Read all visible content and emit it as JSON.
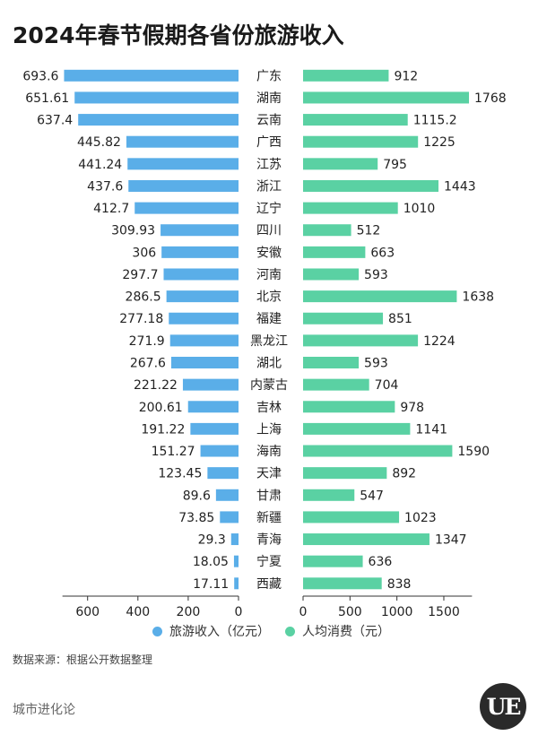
{
  "title": "2024年春节假期各省份旅游收入",
  "chart_data": {
    "type": "bar",
    "categories": [
      "广东",
      "湖南",
      "云南",
      "广西",
      "江苏",
      "浙江",
      "辽宁",
      "四川",
      "安徽",
      "河南",
      "北京",
      "福建",
      "黑龙江",
      "湖北",
      "内蒙古",
      "吉林",
      "上海",
      "海南",
      "天津",
      "甘肃",
      "新疆",
      "青海",
      "宁夏",
      "西藏"
    ],
    "series": [
      {
        "name": "旅游收入（亿元）",
        "color": "#5aaee8",
        "values": [
          693.6,
          651.61,
          637.4,
          445.82,
          441.24,
          437.6,
          412.7,
          309.93,
          306,
          297.7,
          286.5,
          277.18,
          271.9,
          267.6,
          221.22,
          200.61,
          191.22,
          151.27,
          123.45,
          89.6,
          73.85,
          29.3,
          18.05,
          17.11
        ],
        "labels": [
          "693.6",
          "651.61",
          "637.4",
          "445.82",
          "441.24",
          "437.6",
          "412.7",
          "309.93",
          "306",
          "297.7",
          "286.5",
          "277.18",
          "271.9",
          "267.6",
          "221.22",
          "200.61",
          "191.22",
          "151.27",
          "123.45",
          "89.6",
          "73.85",
          "29.3",
          "18.05",
          "17.11"
        ],
        "xlim": [
          0,
          700
        ],
        "ticks": [
          600,
          400,
          200,
          0
        ],
        "direction": "left"
      },
      {
        "name": "人均消费（元）",
        "color": "#5ad1a3",
        "values": [
          912,
          1768,
          1115.2,
          1225,
          795,
          1443,
          1010,
          512,
          663,
          593,
          1638,
          851,
          1224,
          593,
          704,
          978,
          1141,
          1590,
          892,
          547,
          1023,
          1347,
          636,
          838
        ],
        "labels": [
          "912",
          "1768",
          "1115.2",
          "1225",
          "795",
          "1443",
          "1010",
          "512",
          "663",
          "593",
          "1638",
          "851",
          "1224",
          "593",
          "704",
          "978",
          "1141",
          "1590",
          "892",
          "547",
          "1023",
          "1347",
          "636",
          "838"
        ],
        "xlim": [
          0,
          1800
        ],
        "ticks": [
          0,
          500,
          1000,
          1500
        ],
        "direction": "right"
      }
    ],
    "legend": [
      "旅游收入（亿元）",
      "人均消费（元）"
    ],
    "legend_position": "bottom",
    "grid": false
  },
  "source": "数据来源：根据公开数据整理",
  "brand": "城市进化论",
  "logo_text": "UE"
}
